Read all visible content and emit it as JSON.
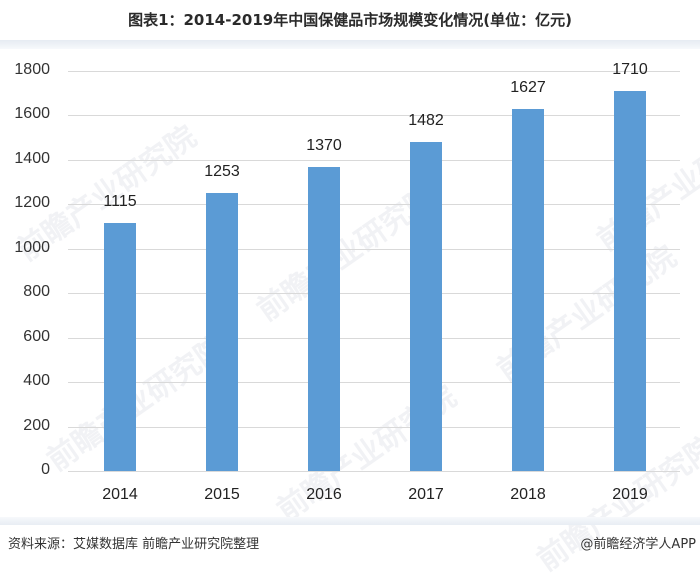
{
  "title": "图表1：2014-2019年中国保健品市场规模变化情况(单位：亿元)",
  "footer": {
    "source": "资料来源：艾媒数据库 前瞻产业研究院整理",
    "credit": "@前瞻经济学人APP"
  },
  "watermark": "前瞻产业研究院",
  "colors": {
    "bar": "#5b9bd5",
    "grid": "#d9d9d9"
  },
  "chart_data": {
    "type": "bar",
    "title": "图表1：2014-2019年中国保健品市场规模变化情况(单位：亿元)",
    "xlabel": "",
    "ylabel": "",
    "categories": [
      "2014",
      "2015",
      "2016",
      "2017",
      "2018",
      "2019"
    ],
    "values": [
      1115,
      1253,
      1370,
      1482,
      1627,
      1710
    ],
    "data_labels": [
      "1115",
      "1253",
      "1370",
      "1482",
      "1627",
      "1710"
    ],
    "ylim": [
      0,
      1800
    ],
    "yticks": [
      "0",
      "200",
      "400",
      "600",
      "800",
      "1000",
      "1200",
      "1400",
      "1600",
      "1800"
    ],
    "grid": true,
    "legend": null,
    "unit": "亿元"
  }
}
